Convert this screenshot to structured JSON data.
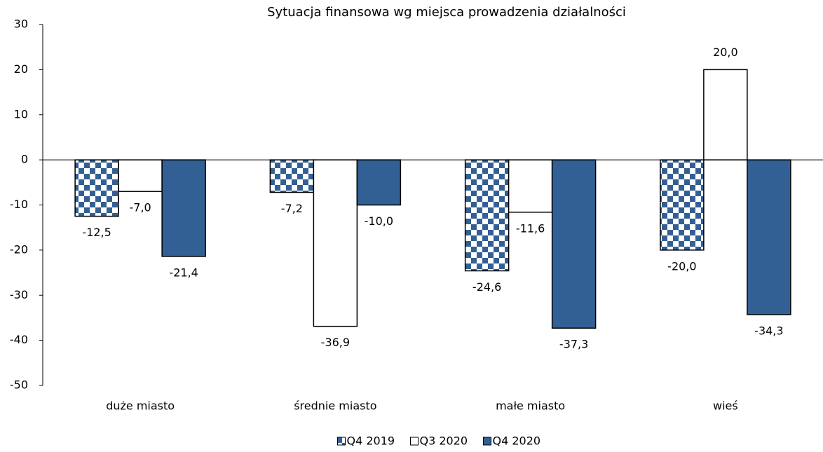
{
  "chart_data": {
    "type": "bar",
    "title": "Sytuacja finansowa wg miejsca prowadzenia działalności",
    "categories": [
      "duże miasto",
      "średnie miasto",
      "małe miasto",
      "wieś"
    ],
    "series": [
      {
        "name": "Q4 2019",
        "color": "#336094",
        "pattern": "checkerboard",
        "values": [
          -12.5,
          -7.2,
          -24.6,
          -20.0
        ],
        "value_labels": [
          "-12,5",
          "-7,2",
          "-24,6",
          "-20,0"
        ]
      },
      {
        "name": "Q3 2020",
        "color": "#ffffff",
        "values": [
          -7.0,
          -36.9,
          -11.6,
          20.0
        ],
        "value_labels": [
          "-7,0",
          "-36,9",
          "-11,6",
          "20,0"
        ]
      },
      {
        "name": "Q4 2020",
        "color": "#336094",
        "values": [
          -21.4,
          -10.0,
          -37.3,
          -34.3
        ],
        "value_labels": [
          "-21,4",
          "-10,0",
          "-37,3",
          "-34,3"
        ]
      }
    ],
    "ylim": [
      -50,
      30
    ],
    "yticks": [
      -50,
      -40,
      -30,
      -20,
      -10,
      0,
      10,
      20,
      30
    ],
    "grid": false,
    "legend": "bottom"
  }
}
